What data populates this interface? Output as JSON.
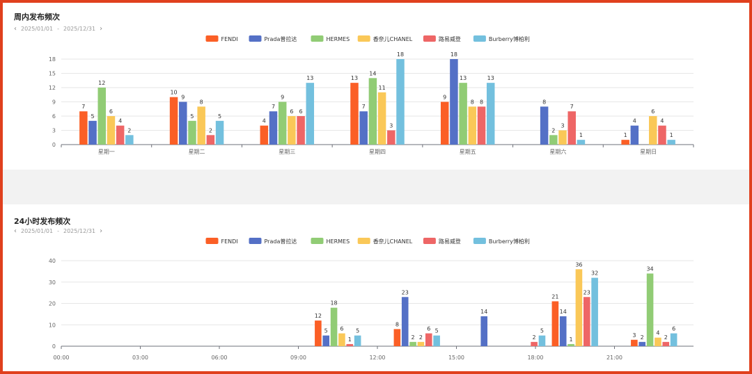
{
  "colors": [
    "#fb5f26",
    "#5470c6",
    "#91cc75",
    "#fac858",
    "#ee6666",
    "#73c0de"
  ],
  "top_panel": {
    "title": "周内发布频次",
    "date_prev": "‹",
    "date_start": "2025/01/01",
    "date_sep": "-",
    "date_end": "2025/12/31",
    "date_next": "›"
  },
  "bottom_panel": {
    "title": "24小时发布频次",
    "date_prev": "‹",
    "date_start": "2025/01/01",
    "date_sep": "-",
    "date_end": "2025/12/31",
    "date_next": "›"
  },
  "chart_data": [
    {
      "type": "bar",
      "title": "周内发布频次",
      "categories": [
        "星期一",
        "星期二",
        "星期三",
        "星期四",
        "星期五",
        "星期六",
        "星期日"
      ],
      "ylim": [
        0,
        18
      ],
      "yticks": [
        0,
        3,
        6,
        9,
        12,
        15,
        18
      ],
      "legend_position": "top-center",
      "series": [
        {
          "name": "FENDI",
          "values": [
            7,
            10,
            4,
            13,
            9,
            null,
            1
          ]
        },
        {
          "name": "Prada普拉达",
          "values": [
            5,
            9,
            7,
            7,
            18,
            8,
            4
          ]
        },
        {
          "name": "HERMES",
          "values": [
            12,
            5,
            9,
            14,
            13,
            2,
            null
          ]
        },
        {
          "name": "香奈儿CHANEL",
          "values": [
            6,
            8,
            6,
            11,
            8,
            3,
            6
          ]
        },
        {
          "name": "路易威登",
          "values": [
            4,
            2,
            6,
            3,
            8,
            7,
            4
          ]
        },
        {
          "name": "Burberry博柏利",
          "values": [
            2,
            5,
            13,
            18,
            13,
            1,
            1
          ]
        }
      ]
    },
    {
      "type": "bar",
      "title": "24小时发布频次",
      "hours": 24,
      "xticks": [
        "00:00",
        "03:00",
        "06:00",
        "09:00",
        "12:00",
        "15:00",
        "18:00",
        "21:00"
      ],
      "ylim": [
        0,
        40
      ],
      "yticks": [
        0,
        10,
        20,
        30,
        40
      ],
      "legend_position": "top-center",
      "groups": [
        {
          "hour": 10,
          "values": [
            12,
            5,
            18,
            6,
            1,
            5
          ]
        },
        {
          "hour": 13,
          "values": [
            8,
            23,
            2,
            2,
            6,
            5
          ]
        },
        {
          "hour": 16,
          "values": [
            null,
            14,
            null,
            null,
            null,
            null
          ]
        },
        {
          "hour": 17,
          "values": [
            null,
            null,
            null,
            null,
            2,
            5
          ]
        },
        {
          "hour": 19,
          "values": [
            21,
            14,
            1,
            36,
            23,
            32
          ]
        },
        {
          "hour": 22,
          "values": [
            3,
            2,
            34,
            4,
            2,
            6
          ]
        }
      ],
      "series_names": [
        "FENDI",
        "Prada普拉达",
        "HERMES",
        "香奈儿CHANEL",
        "路易威登",
        "Burberry博柏利"
      ]
    }
  ]
}
